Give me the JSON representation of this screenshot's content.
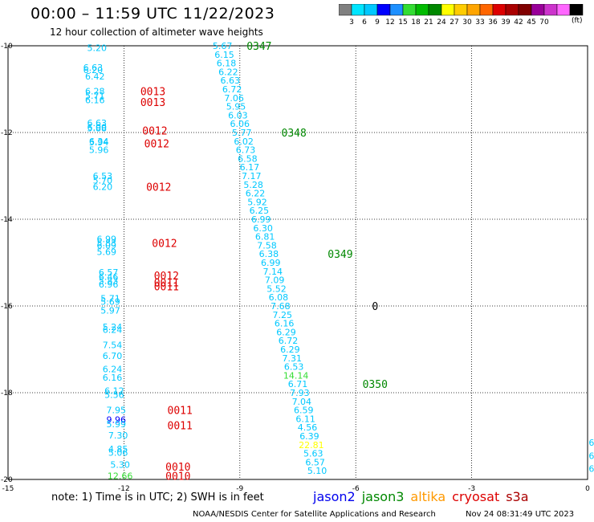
{
  "header": {
    "title": "00:00 – 11:59 UTC 11/22/2023",
    "subtitle": "12 hour collection of altimeter wave heights"
  },
  "colorbar": {
    "colors": [
      "#808080",
      "#00e5ff",
      "#00c8ff",
      "#0000ff",
      "#1e90ff",
      "#33dd33",
      "#00bb00",
      "#008800",
      "#ffff00",
      "#ffcc00",
      "#ffa500",
      "#ff6600",
      "#dd0000",
      "#aa0000",
      "#800000",
      "#990099",
      "#cc33cc",
      "#ff66ff",
      "#000000"
    ],
    "labels": [
      "3",
      "6",
      "9",
      "12",
      "15",
      "18",
      "21",
      "24",
      "27",
      "30",
      "33",
      "36",
      "39",
      "42",
      "45",
      "70"
    ],
    "units": "(ft)"
  },
  "chart_data": {
    "type": "scatter",
    "xlim": [
      -15,
      0
    ],
    "ylim": [
      -20,
      -10
    ],
    "x_ticks": [
      "-15",
      "-12",
      "-9",
      "-6",
      "-3",
      "0"
    ],
    "y_ticks": [
      "-10",
      "-12",
      "-14",
      "-16",
      "-18",
      "-20"
    ],
    "grid": true,
    "observations": [
      {
        "x": -12.7,
        "y": -10.05,
        "label": "5.20",
        "color": "#00c8ff"
      },
      {
        "x": -12.8,
        "y": -10.5,
        "label": "6.63",
        "color": "#00c8ff"
      },
      {
        "x": -12.8,
        "y": -10.56,
        "label": "6.20",
        "color": "#00c8ff"
      },
      {
        "x": -12.75,
        "y": -10.7,
        "label": "6.42",
        "color": "#00c8ff"
      },
      {
        "x": -12.75,
        "y": -11.05,
        "label": "6.28",
        "color": "#00c8ff"
      },
      {
        "x": -12.75,
        "y": -11.15,
        "label": "5.71",
        "color": "#00c8ff"
      },
      {
        "x": -12.75,
        "y": -11.25,
        "label": "6.16",
        "color": "#00c8ff"
      },
      {
        "x": -12.7,
        "y": -11.78,
        "label": "6.63",
        "color": "#00c8ff"
      },
      {
        "x": -12.7,
        "y": -11.88,
        "label": "6.00",
        "color": "#00c8ff"
      },
      {
        "x": -12.7,
        "y": -11.9,
        "label": "5.88",
        "color": "#00c8ff"
      },
      {
        "x": -12.65,
        "y": -12.2,
        "label": "6.34",
        "color": "#00c8ff"
      },
      {
        "x": -12.65,
        "y": -12.22,
        "label": "5.94",
        "color": "#00c8ff"
      },
      {
        "x": -12.65,
        "y": -12.4,
        "label": "5.96",
        "color": "#00c8ff"
      },
      {
        "x": -12.55,
        "y": -13.0,
        "label": "6.53",
        "color": "#00c8ff"
      },
      {
        "x": -12.55,
        "y": -13.1,
        "label": "5.70",
        "color": "#00c8ff"
      },
      {
        "x": -12.55,
        "y": -13.25,
        "label": "6.20",
        "color": "#00c8ff"
      },
      {
        "x": -12.45,
        "y": -14.45,
        "label": "6.99",
        "color": "#00c8ff"
      },
      {
        "x": -12.45,
        "y": -14.55,
        "label": "5.83",
        "color": "#00c8ff"
      },
      {
        "x": -12.45,
        "y": -14.6,
        "label": "6.09",
        "color": "#00c8ff"
      },
      {
        "x": -12.45,
        "y": -14.75,
        "label": "5.69",
        "color": "#00c8ff"
      },
      {
        "x": -12.4,
        "y": -15.22,
        "label": "6.57",
        "color": "#00c8ff"
      },
      {
        "x": -12.4,
        "y": -15.32,
        "label": "6.46",
        "color": "#00c8ff"
      },
      {
        "x": -12.4,
        "y": -15.42,
        "label": "5.83",
        "color": "#00c8ff"
      },
      {
        "x": -12.4,
        "y": -15.5,
        "label": "6.96",
        "color": "#00c8ff"
      },
      {
        "x": -12.35,
        "y": -15.82,
        "label": "5.71",
        "color": "#00c8ff"
      },
      {
        "x": -12.35,
        "y": -15.9,
        "label": "5.69",
        "color": "#00c8ff"
      },
      {
        "x": -12.35,
        "y": -16.1,
        "label": "5.97",
        "color": "#00c8ff"
      },
      {
        "x": -12.3,
        "y": -16.48,
        "label": "5.24",
        "color": "#00c8ff"
      },
      {
        "x": -12.3,
        "y": -16.55,
        "label": "6.24",
        "color": "#00c8ff"
      },
      {
        "x": -12.3,
        "y": -16.9,
        "label": "7.54",
        "color": "#00c8ff"
      },
      {
        "x": -12.3,
        "y": -17.15,
        "label": "6.70",
        "color": "#00c8ff"
      },
      {
        "x": -12.3,
        "y": -17.45,
        "label": "6.24",
        "color": "#00c8ff"
      },
      {
        "x": -12.3,
        "y": -17.65,
        "label": "6.16",
        "color": "#00c8ff"
      },
      {
        "x": -12.25,
        "y": -17.95,
        "label": "6.12",
        "color": "#00c8ff"
      },
      {
        "x": -12.25,
        "y": -18.05,
        "label": "5.56",
        "color": "#00c8ff"
      },
      {
        "x": -12.2,
        "y": -18.4,
        "label": "7.95",
        "color": "#00c8ff"
      },
      {
        "x": -12.2,
        "y": -18.62,
        "label": "9.96",
        "color": "#0000ff"
      },
      {
        "x": -12.2,
        "y": -18.72,
        "label": "5.99",
        "color": "#00c8ff"
      },
      {
        "x": -12.15,
        "y": -18.98,
        "label": "7.30",
        "color": "#00c8ff"
      },
      {
        "x": -12.15,
        "y": -19.3,
        "label": "4.85",
        "color": "#00c8ff"
      },
      {
        "x": -12.15,
        "y": -19.38,
        "label": "5.06",
        "color": "#00c8ff"
      },
      {
        "x": -12.1,
        "y": -19.66,
        "label": "5.30",
        "color": "#00c8ff"
      },
      {
        "x": -12.1,
        "y": -19.92,
        "label": "12.66",
        "color": "#33dd33"
      },
      {
        "x": -9.45,
        "y": -10.0,
        "label": "5.67",
        "color": "#00c8ff"
      },
      {
        "x": -9.4,
        "y": -10.2,
        "label": "6.15",
        "color": "#00c8ff"
      },
      {
        "x": -9.35,
        "y": -10.4,
        "label": "6.18",
        "color": "#00c8ff"
      },
      {
        "x": -9.3,
        "y": -10.6,
        "label": "6.22",
        "color": "#00c8ff"
      },
      {
        "x": -9.25,
        "y": -10.8,
        "label": "6.63",
        "color": "#00c8ff"
      },
      {
        "x": -9.2,
        "y": -11.0,
        "label": "6.72",
        "color": "#00c8ff"
      },
      {
        "x": -9.15,
        "y": -11.2,
        "label": "7.06",
        "color": "#00c8ff"
      },
      {
        "x": -9.1,
        "y": -11.4,
        "label": "5.95",
        "color": "#00c8ff"
      },
      {
        "x": -9.05,
        "y": -11.6,
        "label": "6.03",
        "color": "#00c8ff"
      },
      {
        "x": -9.0,
        "y": -11.8,
        "label": "6.06",
        "color": "#00c8ff"
      },
      {
        "x": -8.95,
        "y": -12.0,
        "label": "5.77",
        "color": "#00c8ff"
      },
      {
        "x": -8.9,
        "y": -12.2,
        "label": "6.02",
        "color": "#00c8ff"
      },
      {
        "x": -8.85,
        "y": -12.4,
        "label": "6.73",
        "color": "#00c8ff"
      },
      {
        "x": -8.8,
        "y": -12.6,
        "label": "6.58",
        "color": "#00c8ff"
      },
      {
        "x": -8.75,
        "y": -12.8,
        "label": "6.17",
        "color": "#00c8ff"
      },
      {
        "x": -8.7,
        "y": -13.0,
        "label": "7.17",
        "color": "#00c8ff"
      },
      {
        "x": -8.65,
        "y": -13.2,
        "label": "5.28",
        "color": "#00c8ff"
      },
      {
        "x": -8.6,
        "y": -13.4,
        "label": "6.22",
        "color": "#00c8ff"
      },
      {
        "x": -8.55,
        "y": -13.6,
        "label": "5.92",
        "color": "#00c8ff"
      },
      {
        "x": -8.5,
        "y": -13.8,
        "label": "6.25",
        "color": "#00c8ff"
      },
      {
        "x": -8.45,
        "y": -14.0,
        "label": "6.99",
        "color": "#00c8ff"
      },
      {
        "x": -8.4,
        "y": -14.2,
        "label": "6.30",
        "color": "#00c8ff"
      },
      {
        "x": -8.35,
        "y": -14.4,
        "label": "6.81",
        "color": "#00c8ff"
      },
      {
        "x": -8.3,
        "y": -14.6,
        "label": "7.58",
        "color": "#00c8ff"
      },
      {
        "x": -8.25,
        "y": -14.8,
        "label": "6.38",
        "color": "#00c8ff"
      },
      {
        "x": -8.2,
        "y": -15.0,
        "label": "6.99",
        "color": "#00c8ff"
      },
      {
        "x": -8.15,
        "y": -15.2,
        "label": "7.14",
        "color": "#00c8ff"
      },
      {
        "x": -8.1,
        "y": -15.4,
        "label": "7.09",
        "color": "#00c8ff"
      },
      {
        "x": -8.05,
        "y": -15.6,
        "label": "5.52",
        "color": "#00c8ff"
      },
      {
        "x": -8.0,
        "y": -15.8,
        "label": "6.08",
        "color": "#00c8ff"
      },
      {
        "x": -7.95,
        "y": -16.0,
        "label": "7.68",
        "color": "#00c8ff"
      },
      {
        "x": -7.9,
        "y": -16.2,
        "label": "7.25",
        "color": "#00c8ff"
      },
      {
        "x": -7.85,
        "y": -16.4,
        "label": "6.16",
        "color": "#00c8ff"
      },
      {
        "x": -7.8,
        "y": -16.6,
        "label": "6.29",
        "color": "#00c8ff"
      },
      {
        "x": -7.75,
        "y": -16.8,
        "label": "6.72",
        "color": "#00c8ff"
      },
      {
        "x": -7.7,
        "y": -17.0,
        "label": "6.29",
        "color": "#00c8ff"
      },
      {
        "x": -7.65,
        "y": -17.2,
        "label": "7.31",
        "color": "#00c8ff"
      },
      {
        "x": -7.6,
        "y": -17.4,
        "label": "6.53",
        "color": "#00c8ff"
      },
      {
        "x": -7.55,
        "y": -17.6,
        "label": "14.14",
        "color": "#33dd33"
      },
      {
        "x": -7.5,
        "y": -17.8,
        "label": "6.71",
        "color": "#00c8ff"
      },
      {
        "x": -7.45,
        "y": -18.0,
        "label": "7.93",
        "color": "#00c8ff"
      },
      {
        "x": -7.4,
        "y": -18.2,
        "label": "7.04",
        "color": "#00c8ff"
      },
      {
        "x": -7.35,
        "y": -18.4,
        "label": "6.59",
        "color": "#00c8ff"
      },
      {
        "x": -7.3,
        "y": -18.6,
        "label": "6.11",
        "color": "#00c8ff"
      },
      {
        "x": -7.25,
        "y": -18.8,
        "label": "4.56",
        "color": "#00c8ff"
      },
      {
        "x": -7.2,
        "y": -19.0,
        "label": "6.39",
        "color": "#00c8ff"
      },
      {
        "x": -7.15,
        "y": -19.2,
        "label": "22.81",
        "color": "#ffff00"
      },
      {
        "x": -7.1,
        "y": -19.4,
        "label": "5.63",
        "color": "#00c8ff"
      },
      {
        "x": -7.05,
        "y": -19.6,
        "label": "6.57",
        "color": "#00c8ff"
      },
      {
        "x": -7.0,
        "y": -19.8,
        "label": "5.10",
        "color": "#00c8ff"
      },
      {
        "x": 0.1,
        "y": -19.15,
        "label": "6",
        "color": "#00c8ff"
      },
      {
        "x": 0.1,
        "y": -19.45,
        "label": "6",
        "color": "#00c8ff"
      },
      {
        "x": 0.1,
        "y": -19.75,
        "label": "6",
        "color": "#00c8ff"
      }
    ],
    "pass_labels": [
      {
        "x": -8.5,
        "y": -10.0,
        "label": "0347",
        "color": "#008800"
      },
      {
        "x": -7.6,
        "y": -12.0,
        "label": "0348",
        "color": "#008800"
      },
      {
        "x": -6.4,
        "y": -14.8,
        "label": "0349",
        "color": "#008800"
      },
      {
        "x": -5.5,
        "y": -17.8,
        "label": "0350",
        "color": "#008800"
      },
      {
        "x": -11.25,
        "y": -11.05,
        "label": "0013",
        "color": "#dd0000"
      },
      {
        "x": -11.25,
        "y": -11.3,
        "label": "0013",
        "color": "#dd0000"
      },
      {
        "x": -11.2,
        "y": -11.95,
        "label": "0012",
        "color": "#dd0000"
      },
      {
        "x": -11.15,
        "y": -12.25,
        "label": "0012",
        "color": "#dd0000"
      },
      {
        "x": -11.1,
        "y": -13.25,
        "label": "0012",
        "color": "#dd0000"
      },
      {
        "x": -10.95,
        "y": -14.55,
        "label": "0012",
        "color": "#dd0000"
      },
      {
        "x": -10.9,
        "y": -15.3,
        "label": "0012",
        "color": "#dd0000"
      },
      {
        "x": -10.9,
        "y": -15.45,
        "label": "0011",
        "color": "#dd0000"
      },
      {
        "x": -10.9,
        "y": -15.55,
        "label": "0011",
        "color": "#dd0000"
      },
      {
        "x": -10.55,
        "y": -18.4,
        "label": "0011",
        "color": "#dd0000"
      },
      {
        "x": -10.55,
        "y": -18.75,
        "label": "0011",
        "color": "#dd0000"
      },
      {
        "x": -10.6,
        "y": -19.7,
        "label": "0010",
        "color": "#dd0000"
      },
      {
        "x": -10.6,
        "y": -19.92,
        "label": "0010",
        "color": "#dd0000"
      },
      {
        "x": -5.5,
        "y": -16.0,
        "label": "0",
        "color": "#000000"
      }
    ]
  },
  "footer": {
    "note": "note: 1) Time is in UTC; 2) SWH is in feet",
    "satellites": [
      {
        "name": "jason2",
        "color": "#0000ee"
      },
      {
        "name": "jason3",
        "color": "#008800"
      },
      {
        "name": "altika",
        "color": "#ff9900"
      },
      {
        "name": "cryosat",
        "color": "#dd0000"
      },
      {
        "name": "s3a",
        "color": "#aa0000"
      }
    ],
    "credit": "NOAA/NESDIS Center for Satellite Applications and Research",
    "timestamp": "Nov 24 08:31:49 UTC 2023"
  }
}
